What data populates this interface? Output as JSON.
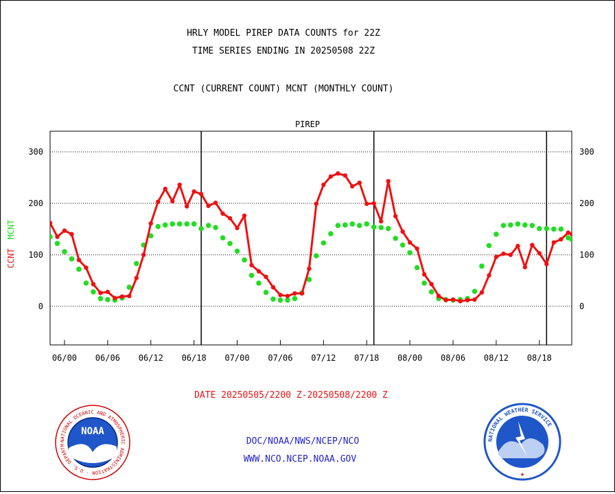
{
  "titles": {
    "line1": "HRLY MODEL PIREP DATA COUNTS for 22Z",
    "line2": "TIME SERIES ENDING IN 20250508 22Z",
    "line3": "CCNT (CURRENT COUNT) MCNT (MONTHLY COUNT)"
  },
  "footer": {
    "date_range": "DATE 20250505/2200 Z-20250508/2200 Z",
    "org_path": "DOC/NOAA/NWS/NCEP/NCO",
    "website": "WWW.NCO.NCEP.NOAA.GOV"
  },
  "logos": {
    "noaa_center": "NOAA",
    "noaa_ring": "NATIONAL OCEANIC AND ATMOSPHERIC ADMINISTRATION · U.S. DEPARTMENT OF COMMERCE",
    "nws_ring": "NATIONAL WEATHER SERVICE"
  },
  "colors": {
    "ccnt": "#ee1111",
    "mcnt": "#22dd22",
    "plot_label": "#2222cc",
    "footer_link": "#2222cc",
    "date_text": "#ee1111"
  },
  "chart_data": {
    "type": "line",
    "title": "PIREP",
    "ylabel_left": [
      "CCNT",
      "MCNT"
    ],
    "ylim": [
      -75,
      340
    ],
    "yticks": [
      0,
      100,
      200,
      300
    ],
    "x_ticks": [
      {
        "x": 1,
        "label": "06/00"
      },
      {
        "x": 7,
        "label": "06/06"
      },
      {
        "x": 13,
        "label": "06/12"
      },
      {
        "x": 19,
        "label": "06/18"
      },
      {
        "x": 25,
        "label": "07/00"
      },
      {
        "x": 31,
        "label": "07/06"
      },
      {
        "x": 37,
        "label": "07/12"
      },
      {
        "x": 43,
        "label": "07/18"
      },
      {
        "x": 49,
        "label": "08/00"
      },
      {
        "x": 55,
        "label": "08/06"
      },
      {
        "x": 61,
        "label": "08/12"
      },
      {
        "x": 67,
        "label": "08/18"
      }
    ],
    "day_boundaries": [
      20,
      44,
      68
    ],
    "xlim": [
      -1,
      71.5
    ],
    "grid_y": true,
    "series": [
      {
        "name": "CCNT",
        "marker": "small",
        "x": [
          -1,
          0,
          1,
          2,
          3,
          4,
          5,
          6,
          7,
          8,
          9,
          10,
          11,
          12,
          13,
          14,
          15,
          16,
          17,
          18,
          19,
          20,
          21,
          22,
          23,
          24,
          25,
          26,
          27,
          28,
          29,
          30,
          31,
          32,
          33,
          34,
          35,
          36,
          37,
          38,
          39,
          40,
          41,
          42,
          43,
          44,
          45,
          46,
          47,
          48,
          49,
          50,
          51,
          52,
          53,
          54,
          55,
          56,
          57,
          58,
          59,
          60,
          61,
          62,
          63,
          64,
          65,
          66,
          67,
          68,
          69,
          70,
          71,
          71.5
        ],
        "values": [
          162,
          135,
          147,
          140,
          90,
          75,
          43,
          26,
          28,
          16,
          19,
          20,
          55,
          100,
          161,
          203,
          228,
          204,
          236,
          194,
          223,
          218,
          195,
          201,
          180,
          171,
          152,
          176,
          80,
          68,
          57,
          37,
          22,
          20,
          25,
          25,
          73,
          199,
          236,
          252,
          258,
          254,
          233,
          240,
          199,
          200,
          165,
          243,
          175,
          145,
          124,
          112,
          62,
          43,
          20,
          12,
          13,
          10,
          12,
          13,
          27,
          60,
          96,
          102,
          100,
          117,
          76,
          119,
          103,
          82,
          124,
          130,
          143,
          140
        ]
      },
      {
        "name": "MCNT",
        "marker": "large",
        "x": [
          -1,
          0,
          1,
          2,
          3,
          4,
          5,
          6,
          7,
          8,
          9,
          10,
          11,
          12,
          13,
          14,
          15,
          16,
          17,
          18,
          19,
          20,
          21,
          22,
          23,
          24,
          25,
          26,
          27,
          28,
          29,
          30,
          31,
          32,
          33,
          34,
          35,
          36,
          37,
          38,
          39,
          40,
          41,
          42,
          43,
          44,
          45,
          46,
          47,
          48,
          49,
          50,
          51,
          52,
          53,
          54,
          55,
          56,
          57,
          58,
          59,
          60,
          61,
          62,
          63,
          64,
          65,
          66,
          67,
          68,
          69,
          70,
          71,
          71.5
        ],
        "values": [
          135,
          122,
          106,
          92,
          72,
          45,
          28,
          15,
          13,
          12,
          16,
          37,
          83,
          119,
          137,
          155,
          158,
          160,
          160,
          160,
          160,
          151,
          157,
          153,
          133,
          122,
          107,
          90,
          60,
          45,
          27,
          14,
          12,
          12,
          15,
          26,
          52,
          98,
          123,
          141,
          157,
          158,
          160,
          157,
          160,
          154,
          153,
          151,
          132,
          119,
          104,
          75,
          45,
          28,
          15,
          13,
          12,
          13,
          15,
          29,
          78,
          118,
          140,
          157,
          158,
          160,
          158,
          157,
          151,
          151,
          150,
          150,
          133,
          130
        ]
      }
    ]
  }
}
